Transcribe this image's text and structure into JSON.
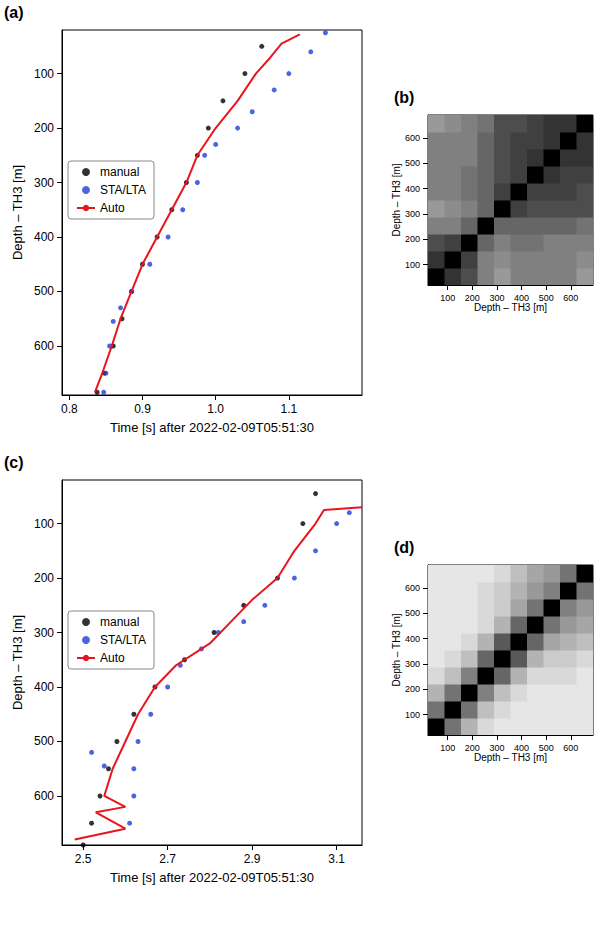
{
  "chart_data": [
    {
      "type": "scatter",
      "panel": "(a)",
      "xlabel": "Time [s] after 2022-02-09T05:51:30",
      "ylabel": "Depth – TH3 [m]",
      "xlim": [
        0.79,
        1.2
      ],
      "ylim": [
        20,
        690
      ],
      "xticks": [
        {
          "value": 0.8,
          "label": "0.8"
        },
        {
          "value": 0.9,
          "label": "0.9"
        },
        {
          "value": 1.0,
          "label": "1.0"
        },
        {
          "value": 1.1,
          "label": "1.1"
        }
      ],
      "yticks": [
        100,
        200,
        300,
        400,
        500,
        600
      ],
      "grid": false,
      "legend": "left",
      "series": [
        {
          "name": "manual",
          "type": "scatter",
          "marker": "circle",
          "color": "#000000",
          "x": [
            1.063,
            1.04,
            1.01,
            0.99,
            0.975,
            0.96,
            0.94,
            0.92,
            0.9,
            0.885,
            0.872,
            0.86,
            0.848,
            0.838
          ],
          "values": [
            50,
            100,
            150,
            200,
            250,
            300,
            350,
            400,
            450,
            500,
            550,
            600,
            650,
            685
          ]
        },
        {
          "name": "STA/LTA",
          "type": "scatter",
          "marker": "circle",
          "color": "#1f3fd6",
          "x": [
            1.15,
            1.13,
            1.1,
            1.08,
            1.05,
            1.03,
            1.0,
            0.985,
            0.975,
            0.955,
            0.935,
            0.91,
            0.885,
            0.87,
            0.86,
            0.855,
            0.85,
            0.847
          ],
          "values": [
            25,
            60,
            100,
            130,
            170,
            200,
            230,
            250,
            300,
            350,
            400,
            450,
            500,
            530,
            555,
            600,
            650,
            685
          ]
        },
        {
          "name": "Auto",
          "type": "line",
          "line_style": "solid",
          "color": "#e8141e",
          "x": [
            1.115,
            1.09,
            1.075,
            1.055,
            1.03,
            1.0,
            0.975,
            0.96,
            0.94,
            0.92,
            0.9,
            0.885,
            0.87,
            0.858,
            0.845,
            0.835
          ],
          "values": [
            28,
            45,
            70,
            100,
            150,
            200,
            250,
            300,
            350,
            400,
            450,
            500,
            550,
            600,
            650,
            685
          ]
        }
      ]
    },
    {
      "type": "heatmap",
      "panel": "(b)",
      "xlabel": "Depth – TH3 [m]",
      "ylabel": "Depth – TH3 [m]",
      "xlim": [
        20,
        690
      ],
      "ylim": [
        20,
        690
      ],
      "xticks": [
        100,
        200,
        300,
        400,
        500,
        600
      ],
      "yticks": [
        100,
        200,
        300,
        400,
        500,
        600
      ],
      "grid": false,
      "bins": [
        20,
        87,
        154,
        221,
        288,
        355,
        422,
        489,
        556,
        623,
        690
      ],
      "cells": [
        [
          1,
          0.8,
          0.7,
          0.5,
          0.4,
          0.5,
          0.5,
          0.5,
          0.5,
          0.4
        ],
        [
          0.8,
          1,
          0.75,
          0.5,
          0.45,
          0.5,
          0.5,
          0.5,
          0.5,
          0.45
        ],
        [
          0.7,
          0.75,
          1,
          0.6,
          0.5,
          0.55,
          0.55,
          0.5,
          0.5,
          0.5
        ],
        [
          0.5,
          0.5,
          0.6,
          1,
          0.6,
          0.6,
          0.6,
          0.6,
          0.6,
          0.55
        ],
        [
          0.4,
          0.45,
          0.5,
          0.6,
          1,
          0.75,
          0.7,
          0.7,
          0.7,
          0.7
        ],
        [
          0.5,
          0.5,
          0.55,
          0.6,
          0.75,
          1,
          0.75,
          0.75,
          0.75,
          0.7
        ],
        [
          0.5,
          0.5,
          0.55,
          0.6,
          0.7,
          0.75,
          1,
          0.8,
          0.75,
          0.75
        ],
        [
          0.5,
          0.5,
          0.5,
          0.6,
          0.7,
          0.75,
          0.8,
          1,
          0.8,
          0.8
        ],
        [
          0.5,
          0.5,
          0.5,
          0.6,
          0.7,
          0.75,
          0.75,
          0.8,
          1,
          0.8
        ],
        [
          0.4,
          0.45,
          0.5,
          0.55,
          0.7,
          0.7,
          0.75,
          0.8,
          0.8,
          1
        ]
      ]
    },
    {
      "type": "scatter",
      "panel": "(c)",
      "xlabel": "Time [s] after 2022-02-09T05:51:30",
      "ylabel": "Depth – TH3 [m]",
      "xlim": [
        2.45,
        3.16
      ],
      "ylim": [
        20,
        690
      ],
      "xticks": [
        {
          "value": 2.5,
          "label": "2.5"
        },
        {
          "value": 2.7,
          "label": "2.7"
        },
        {
          "value": 2.9,
          "label": "2.9"
        },
        {
          "value": 3.1,
          "label": "3.1"
        }
      ],
      "yticks": [
        100,
        200,
        300,
        400,
        500,
        600
      ],
      "grid": false,
      "legend": "left",
      "series": [
        {
          "name": "manual",
          "type": "scatter",
          "marker": "circle",
          "color": "#000000",
          "x": [
            3.05,
            3.02,
            2.96,
            2.88,
            2.81,
            2.74,
            2.67,
            2.62,
            2.58,
            2.56,
            2.54,
            2.52,
            2.5
          ],
          "values": [
            45,
            100,
            200,
            250,
            300,
            350,
            400,
            450,
            500,
            550,
            600,
            650,
            690
          ]
        },
        {
          "name": "STA/LTA",
          "type": "scatter",
          "marker": "circle",
          "color": "#1f3fd6",
          "x": [
            3.13,
            3.1,
            3.05,
            3.0,
            2.93,
            2.88,
            2.82,
            2.78,
            2.73,
            2.7,
            2.66,
            2.63,
            2.52,
            2.55,
            2.62,
            2.62,
            2.61
          ],
          "values": [
            80,
            100,
            150,
            200,
            250,
            280,
            300,
            330,
            360,
            400,
            450,
            500,
            520,
            545,
            550,
            600,
            650
          ]
        },
        {
          "name": "Auto",
          "type": "line",
          "line_style": "solid",
          "color": "#e8141e",
          "x": [
            3.16,
            3.07,
            3.05,
            3.0,
            2.96,
            2.9,
            2.85,
            2.8,
            2.72,
            2.67,
            2.63,
            2.6,
            2.57,
            2.55,
            2.6,
            2.53,
            2.6,
            2.48
          ],
          "values": [
            70,
            75,
            100,
            150,
            200,
            240,
            280,
            320,
            360,
            400,
            450,
            500,
            550,
            600,
            620,
            630,
            660,
            680
          ]
        }
      ]
    },
    {
      "type": "heatmap",
      "panel": "(d)",
      "xlabel": "Depth – TH3 [m]",
      "ylabel": "Depth – TH3 [m]",
      "xlim": [
        20,
        690
      ],
      "ylim": [
        20,
        690
      ],
      "xticks": [
        100,
        200,
        300,
        400,
        500,
        600
      ],
      "yticks": [
        100,
        200,
        300,
        400,
        500,
        600
      ],
      "grid": false,
      "bins": [
        20,
        87,
        154,
        221,
        288,
        355,
        422,
        489,
        556,
        623,
        690
      ],
      "cells": [
        [
          1,
          0.55,
          0.3,
          0.15,
          0.1,
          0.1,
          0.1,
          0.1,
          0.1,
          0.1
        ],
        [
          0.55,
          1,
          0.55,
          0.25,
          0.15,
          0.1,
          0.1,
          0.1,
          0.1,
          0.1
        ],
        [
          0.3,
          0.55,
          1,
          0.5,
          0.25,
          0.15,
          0.1,
          0.1,
          0.1,
          0.1
        ],
        [
          0.15,
          0.25,
          0.5,
          1,
          0.6,
          0.3,
          0.15,
          0.15,
          0.15,
          0.1
        ],
        [
          0.1,
          0.15,
          0.25,
          0.6,
          1,
          0.65,
          0.3,
          0.2,
          0.2,
          0.15
        ],
        [
          0.1,
          0.1,
          0.15,
          0.3,
          0.65,
          1,
          0.6,
          0.35,
          0.3,
          0.25
        ],
        [
          0.1,
          0.1,
          0.1,
          0.15,
          0.3,
          0.6,
          1,
          0.55,
          0.4,
          0.35
        ],
        [
          0.1,
          0.1,
          0.1,
          0.15,
          0.2,
          0.35,
          0.55,
          1,
          0.5,
          0.4
        ],
        [
          0.1,
          0.1,
          0.1,
          0.15,
          0.2,
          0.3,
          0.4,
          0.5,
          1,
          0.55
        ],
        [
          0.1,
          0.1,
          0.1,
          0.1,
          0.15,
          0.25,
          0.35,
          0.4,
          0.55,
          1
        ]
      ]
    }
  ]
}
